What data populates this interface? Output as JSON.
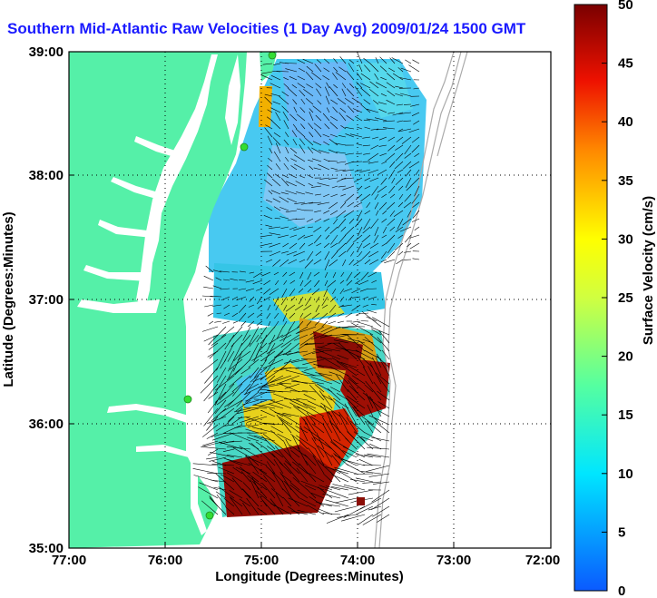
{
  "title": "Southern Mid-Atlantic Raw Velocities (1 Day Avg) 2009/01/24 1500 GMT",
  "x_axis": {
    "label": "Longitude (Degrees:Minutes)",
    "ticks": [
      "77:00",
      "76:00",
      "75:00",
      "74:00",
      "73:00",
      "72:00"
    ]
  },
  "y_axis": {
    "label": "Latitude (Degrees:Minutes)",
    "ticks": [
      "39:00",
      "38:00",
      "37:00",
      "36:00",
      "35:00"
    ]
  },
  "colorbar": {
    "label": "Surface Velocity (cm/s)",
    "ticks": [
      "50",
      "45",
      "40",
      "35",
      "30",
      "25",
      "20",
      "15",
      "10",
      "5",
      "0"
    ],
    "min": 0,
    "max": 50
  },
  "colors": {
    "land": "#55f0a8",
    "title": "#1a1aff",
    "grid": "#000000",
    "station": "#33dd33",
    "arrow": "#000000"
  },
  "chart_data": {
    "type": "heatmap",
    "title": "Southern Mid-Atlantic Raw Velocities (1 Day Avg) 2009/01/24 1500 GMT",
    "xlabel": "Longitude (Degrees:Minutes)",
    "ylabel": "Latitude (Degrees:Minutes)",
    "xlim": [
      -77.0,
      -72.0
    ],
    "ylim": [
      35.0,
      39.0
    ],
    "colorbar_range": [
      0,
      50
    ],
    "colorbar_label": "Surface Velocity (cm/s)",
    "grid": true,
    "speed_zones": [
      {
        "lon": -74.4,
        "lat": 38.5,
        "speed": 8
      },
      {
        "lon": -74.6,
        "lat": 37.6,
        "speed": 12
      },
      {
        "lon": -74.2,
        "lat": 37.9,
        "speed": 14
      },
      {
        "lon": -74.8,
        "lat": 37.2,
        "speed": 10
      },
      {
        "lon": -75.1,
        "lat": 36.6,
        "speed": 22
      },
      {
        "lon": -74.5,
        "lat": 36.6,
        "speed": 46
      },
      {
        "lon": -73.9,
        "lat": 36.3,
        "speed": 44
      },
      {
        "lon": -74.3,
        "lat": 35.9,
        "speed": 40
      },
      {
        "lon": -75.0,
        "lat": 35.4,
        "speed": 47
      },
      {
        "lon": -75.2,
        "lat": 36.2,
        "speed": 26
      }
    ],
    "stations": [
      {
        "lon": -75.1,
        "lat": 39.0
      },
      {
        "lon": -75.3,
        "lat": 38.2
      },
      {
        "lon": -75.4,
        "lat": 36.2
      },
      {
        "lon": -75.5,
        "lat": 35.3
      }
    ]
  }
}
